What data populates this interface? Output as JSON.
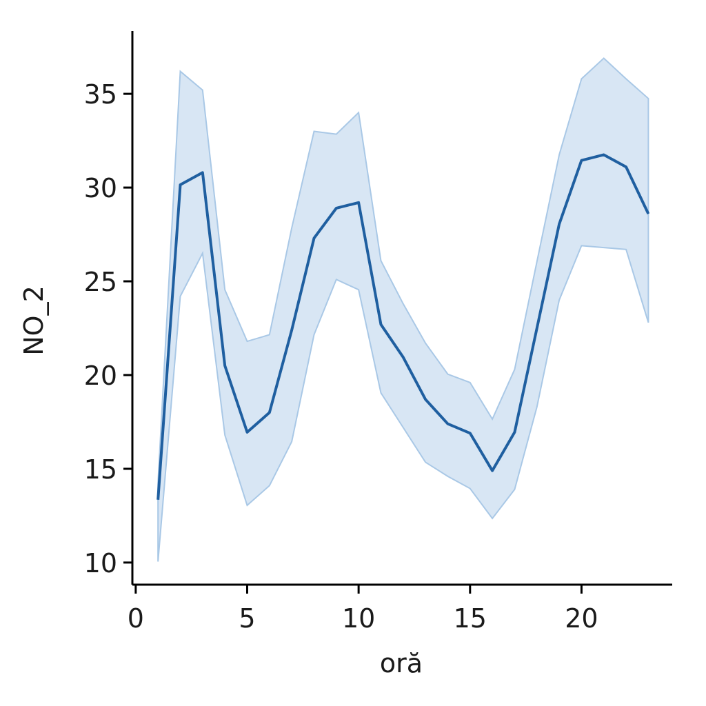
{
  "chart_data": {
    "type": "line",
    "x_label": "oră",
    "y_label": "NO_2",
    "x": [
      1,
      2,
      3,
      4,
      5,
      6,
      7,
      8,
      9,
      10,
      11,
      12,
      13,
      14,
      15,
      16,
      17,
      18,
      19,
      20,
      21,
      22,
      23
    ],
    "values": [
      13.35,
      30.15,
      30.8,
      20.5,
      16.95,
      18.0,
      22.4,
      27.3,
      28.9,
      29.2,
      22.7,
      20.95,
      18.7,
      17.4,
      16.9,
      14.9,
      16.95,
      22.5,
      28.05,
      31.45,
      31.75,
      31.1,
      28.6
    ],
    "upper": [
      14.25,
      36.2,
      35.2,
      24.55,
      21.8,
      22.15,
      27.85,
      33.0,
      32.85,
      34.0,
      26.1,
      23.8,
      21.7,
      20.05,
      19.6,
      17.65,
      20.3,
      26.05,
      31.75,
      35.8,
      36.9,
      35.8,
      34.75
    ],
    "lower": [
      10.05,
      24.2,
      26.5,
      16.8,
      13.05,
      14.1,
      16.45,
      22.15,
      25.1,
      24.55,
      19.05,
      17.2,
      15.35,
      14.6,
      13.95,
      12.35,
      13.9,
      18.3,
      24.0,
      26.9,
      26.8,
      26.7,
      22.8
    ],
    "color": "#1f5fa0",
    "band_color": "#a9c8e6",
    "xlim": [
      -0.15,
      24.07
    ],
    "xticks": [
      0,
      5,
      10,
      15,
      20
    ],
    "ylim": [
      8.82,
      38.35
    ],
    "yticks": [
      10,
      15,
      20,
      25,
      30,
      35
    ]
  }
}
